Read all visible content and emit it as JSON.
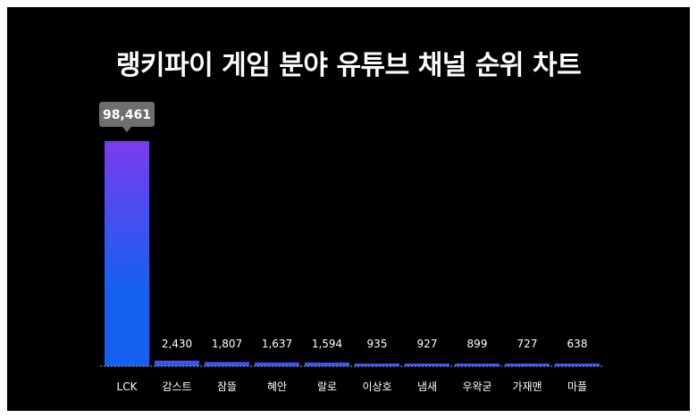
{
  "title": "랭키파이 게임 분야 유튜브 채널 순위 차트",
  "colors": {
    "background": "#000000",
    "bar_top": "#7a3cf0",
    "bar_bottom": "#1560f0",
    "tooltip": "#6e6e6e",
    "baseline": "#8aa8ff"
  },
  "chart_data": {
    "type": "bar",
    "title": "랭키파이 게임 분야 유튜브 채널 순위 차트",
    "categories": [
      "LCK",
      "감스트",
      "잠뜰",
      "혜안",
      "랄로",
      "이상호",
      "냄새",
      "우왁굳",
      "가재맨",
      "마플"
    ],
    "values": [
      98461,
      2430,
      1807,
      1637,
      1594,
      935,
      927,
      899,
      727,
      638
    ],
    "value_labels": [
      "98,461",
      "2,430",
      "1,807",
      "1,637",
      "1,594",
      "935",
      "927",
      "899",
      "727",
      "638"
    ],
    "highlight_index": 0,
    "ylim": [
      0,
      98461
    ],
    "grid": false,
    "legend": "none"
  }
}
